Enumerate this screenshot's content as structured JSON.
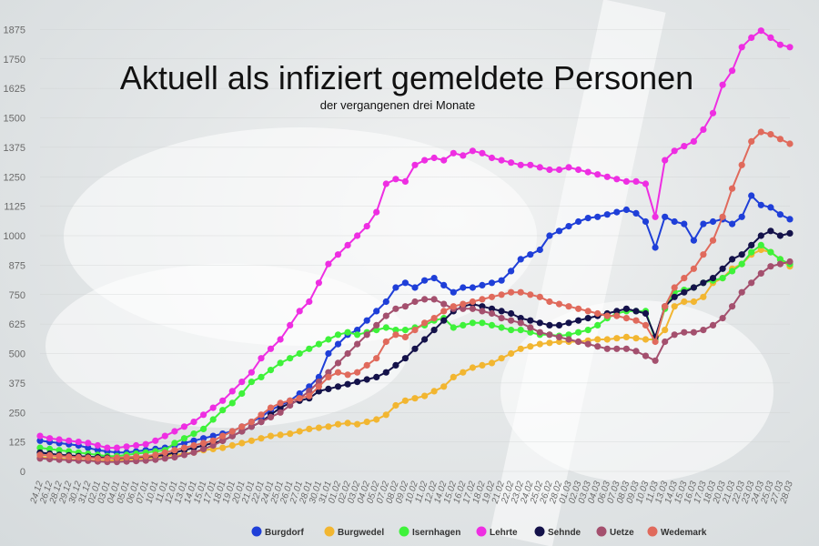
{
  "chart_data": {
    "type": "line",
    "title": "Aktuell als infiziert gemeldete Personen",
    "subtitle": "der vergangenen drei Monate",
    "xlabel": "",
    "ylabel": "",
    "ylim": [
      0,
      2000
    ],
    "yticks": [
      0,
      125,
      250,
      375,
      500,
      625,
      750,
      875,
      1000,
      1125,
      1250,
      1375,
      1500,
      1625,
      1750,
      1875
    ],
    "grid": true,
    "legend_position": "bottom",
    "x": [
      "24.12",
      "26.12",
      "28.12",
      "29.12",
      "30.12",
      "31.12",
      "02.01",
      "03.01",
      "04.01",
      "05.01",
      "06.01",
      "07.01",
      "10.01",
      "11.01",
      "12.01",
      "13.01",
      "14.01",
      "15.01",
      "17.01",
      "18.01",
      "19.01",
      "20.01",
      "21.01",
      "22.01",
      "24.01",
      "25.01",
      "26.01",
      "27.01",
      "28.01",
      "30.01",
      "31.01",
      "01.02",
      "02.02",
      "03.02",
      "04.02",
      "05.02",
      "07.02",
      "08.02",
      "09.02",
      "10.02",
      "11.02",
      "12.02",
      "14.02",
      "15.02",
      "16.02",
      "17.02",
      "18.02",
      "19.02",
      "21.02",
      "22.02",
      "23.02",
      "24.02",
      "25.02",
      "26.02",
      "28.02",
      "01.03",
      "02.03",
      "03.03",
      "04.03",
      "06.03",
      "07.03",
      "08.03",
      "09.03",
      "10.03",
      "11.03",
      "13.03",
      "14.03",
      "15.03",
      "16.03",
      "17.03",
      "18.03",
      "20.03",
      "21.03",
      "22.03",
      "23.03",
      "24.03",
      "25.03",
      "27.03",
      "28.03"
    ],
    "series": [
      {
        "name": "Burgdorf",
        "color": "#1f3fd8",
        "values": [
          130,
          125,
          120,
          115,
          110,
          100,
          90,
          85,
          80,
          80,
          85,
          90,
          95,
          100,
          110,
          120,
          130,
          140,
          150,
          160,
          170,
          190,
          210,
          230,
          260,
          280,
          300,
          330,
          360,
          400,
          500,
          540,
          580,
          600,
          640,
          680,
          720,
          780,
          800,
          780,
          810,
          820,
          790,
          760,
          780,
          780,
          790,
          800,
          810,
          850,
          900,
          920,
          940,
          1000,
          1020,
          1040,
          1060,
          1075,
          1080,
          1090,
          1100,
          1110,
          1095,
          1060,
          950,
          1080,
          1060,
          1050,
          980,
          1050,
          1060,
          1070,
          1050,
          1080,
          1170,
          1130,
          1120,
          1090,
          1070
        ]
      },
      {
        "name": "Burgwedel",
        "color": "#f2b631",
        "values": [
          60,
          58,
          55,
          52,
          50,
          48,
          45,
          45,
          48,
          50,
          52,
          55,
          60,
          65,
          70,
          75,
          80,
          90,
          95,
          100,
          110,
          120,
          130,
          140,
          150,
          155,
          160,
          170,
          180,
          185,
          190,
          200,
          205,
          200,
          210,
          220,
          240,
          280,
          300,
          310,
          320,
          340,
          360,
          400,
          420,
          440,
          450,
          460,
          480,
          500,
          520,
          530,
          540,
          545,
          550,
          550,
          550,
          555,
          560,
          560,
          565,
          570,
          565,
          560,
          560,
          600,
          700,
          720,
          720,
          740,
          800,
          820,
          860,
          880,
          920,
          940,
          930,
          900,
          870
        ]
      },
      {
        "name": "Isernhagen",
        "color": "#3ef23a",
        "values": [
          100,
          95,
          90,
          85,
          80,
          75,
          70,
          65,
          65,
          70,
          75,
          80,
          85,
          90,
          120,
          140,
          160,
          180,
          220,
          260,
          290,
          330,
          380,
          400,
          430,
          460,
          480,
          500,
          520,
          540,
          560,
          580,
          590,
          580,
          590,
          600,
          610,
          600,
          600,
          610,
          620,
          640,
          650,
          610,
          620,
          630,
          630,
          620,
          610,
          600,
          600,
          590,
          580,
          580,
          575,
          580,
          590,
          600,
          620,
          650,
          670,
          680,
          680,
          680,
          560,
          690,
          760,
          770,
          780,
          800,
          810,
          820,
          850,
          880,
          930,
          960,
          930,
          900,
          880
        ]
      },
      {
        "name": "Lehrte",
        "color": "#ee2ee2",
        "values": [
          150,
          140,
          135,
          130,
          125,
          120,
          110,
          100,
          100,
          105,
          110,
          115,
          130,
          150,
          170,
          190,
          210,
          240,
          270,
          300,
          340,
          380,
          420,
          480,
          520,
          560,
          620,
          680,
          720,
          800,
          880,
          920,
          960,
          1000,
          1040,
          1100,
          1220,
          1240,
          1230,
          1300,
          1320,
          1330,
          1320,
          1350,
          1340,
          1360,
          1350,
          1330,
          1320,
          1310,
          1300,
          1300,
          1290,
          1280,
          1280,
          1290,
          1280,
          1270,
          1260,
          1250,
          1240,
          1230,
          1230,
          1220,
          1080,
          1320,
          1360,
          1380,
          1400,
          1450,
          1520,
          1640,
          1700,
          1800,
          1840,
          1870,
          1840,
          1810,
          1800
        ]
      },
      {
        "name": "Sehnde",
        "color": "#14124a",
        "values": [
          80,
          75,
          70,
          68,
          65,
          62,
          60,
          58,
          55,
          58,
          60,
          62,
          65,
          70,
          80,
          90,
          100,
          110,
          120,
          130,
          150,
          170,
          190,
          210,
          240,
          270,
          290,
          300,
          310,
          340,
          350,
          360,
          370,
          380,
          390,
          400,
          420,
          450,
          480,
          520,
          560,
          600,
          640,
          680,
          700,
          710,
          700,
          690,
          680,
          670,
          650,
          640,
          630,
          620,
          620,
          630,
          640,
          650,
          660,
          670,
          680,
          690,
          680,
          670,
          570,
          700,
          740,
          760,
          780,
          800,
          820,
          860,
          900,
          920,
          960,
          1000,
          1020,
          1000,
          1010
        ]
      },
      {
        "name": "Uetze",
        "color": "#a4506e",
        "values": [
          55,
          52,
          50,
          48,
          46,
          45,
          42,
          40,
          40,
          42,
          44,
          46,
          50,
          55,
          60,
          70,
          80,
          95,
          110,
          130,
          150,
          170,
          190,
          210,
          230,
          250,
          280,
          310,
          340,
          380,
          420,
          460,
          500,
          540,
          580,
          620,
          660,
          690,
          700,
          720,
          730,
          730,
          710,
          690,
          690,
          690,
          680,
          670,
          650,
          640,
          630,
          610,
          590,
          580,
          570,
          560,
          550,
          540,
          530,
          520,
          520,
          520,
          510,
          490,
          470,
          550,
          580,
          590,
          590,
          600,
          620,
          650,
          700,
          760,
          800,
          840,
          870,
          880,
          890
        ]
      },
      {
        "name": "Wedemark",
        "color": "#e06a5c",
        "values": [
          70,
          68,
          65,
          62,
          60,
          58,
          55,
          55,
          58,
          60,
          62,
          65,
          70,
          80,
          90,
          100,
          110,
          120,
          130,
          150,
          170,
          190,
          210,
          240,
          270,
          290,
          300,
          310,
          320,
          360,
          400,
          420,
          410,
          420,
          450,
          480,
          550,
          580,
          570,
          600,
          630,
          650,
          680,
          700,
          710,
          720,
          730,
          740,
          750,
          760,
          760,
          750,
          740,
          720,
          710,
          700,
          690,
          680,
          670,
          660,
          660,
          650,
          640,
          620,
          550,
          700,
          780,
          820,
          860,
          920,
          980,
          1080,
          1200,
          1300,
          1400,
          1440,
          1430,
          1410,
          1390
        ]
      }
    ]
  }
}
